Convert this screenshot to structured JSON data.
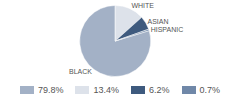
{
  "chart_data": {
    "type": "pie",
    "categories": [
      "BLACK",
      "WHITE",
      "ASIAN",
      "HISPANIC"
    ],
    "values": [
      79.8,
      13.4,
      6.2,
      0.7
    ],
    "value_labels": [
      "79.8%",
      "13.4%",
      "6.2%",
      "0.7%"
    ],
    "colors": [
      "#a3b1c6",
      "#dde2ea",
      "#3e5a7e",
      "#7088a8"
    ]
  }
}
